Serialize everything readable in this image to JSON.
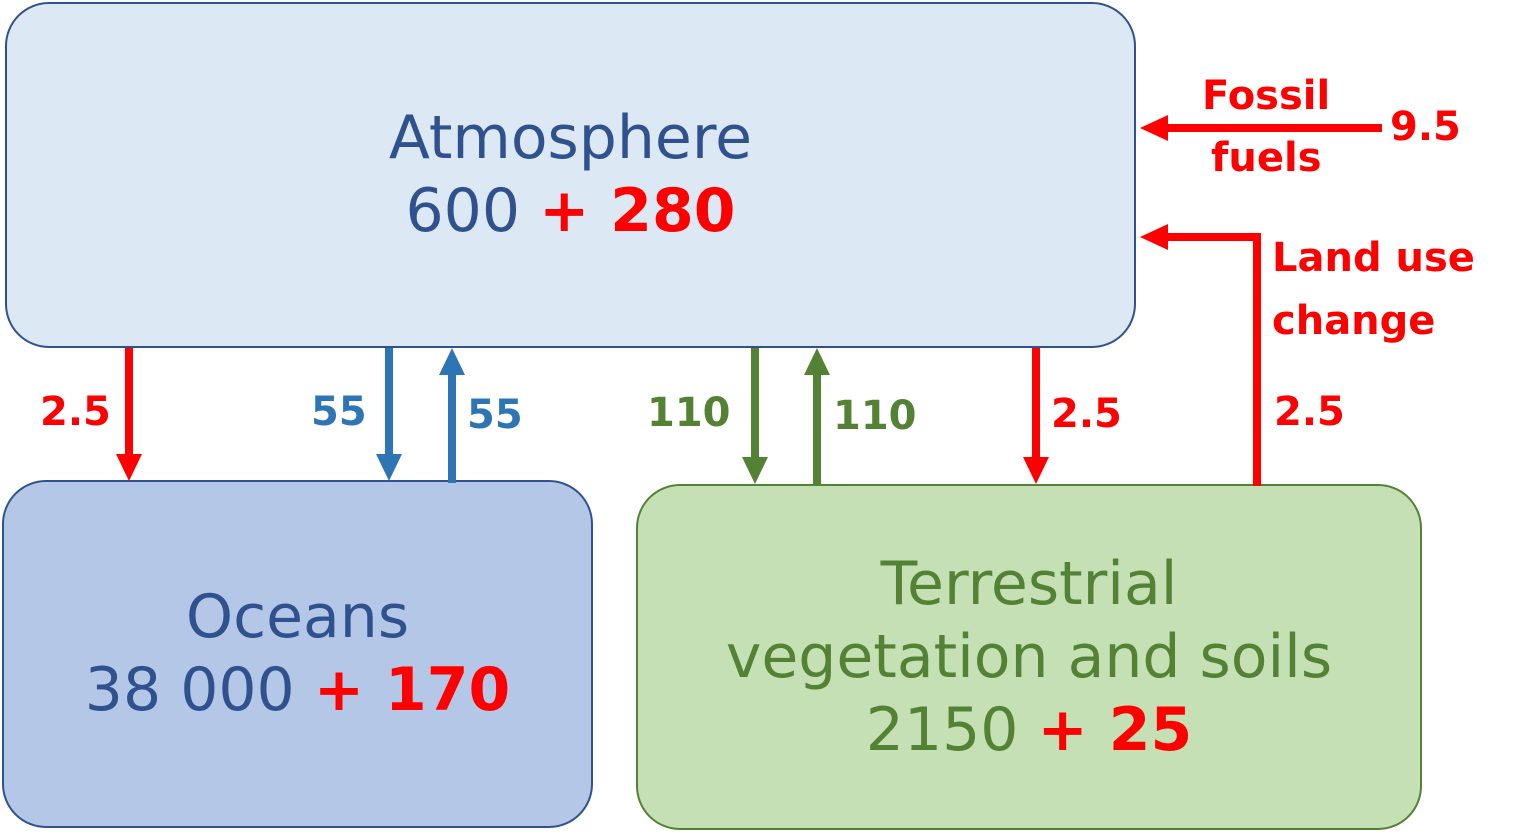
{
  "atmosphere": {
    "name": "Atmosphere",
    "stock": "600",
    "addition": "+ 280"
  },
  "oceans": {
    "name": "Oceans",
    "stock": "38 000",
    "addition": "+ 170"
  },
  "terrestrial": {
    "name_line1": "Terrestrial",
    "name_line2": "vegetation and soils",
    "stock": "2150",
    "addition": "+ 25"
  },
  "fluxes": {
    "atm_to_ocean_anthro": "2.5",
    "atm_to_ocean_natural": "55",
    "ocean_to_atm_natural": "55",
    "atm_to_land_natural": "110",
    "land_to_atm_natural": "110",
    "atm_to_land_anthro": "2.5",
    "land_use_change": "2.5",
    "fossil_fuels": "9.5"
  },
  "source_labels": {
    "fossil_line1": "Fossil",
    "fossil_line2": "fuels",
    "landuse_line1": "Land use",
    "landuse_line2": "change"
  },
  "colors": {
    "anthropogenic": "#ff0000",
    "ocean_flux": "#2e75b6",
    "land_flux": "#548235"
  }
}
